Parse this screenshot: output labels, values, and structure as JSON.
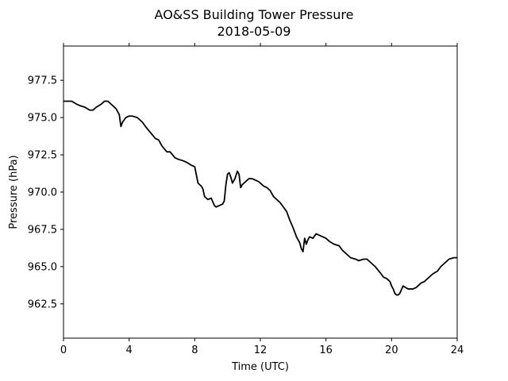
{
  "chart_data": {
    "type": "line",
    "title": "AO&SS Building Tower Pressure",
    "subtitle": "2018-05-09",
    "xlabel": "Time (UTC)",
    "ylabel": "Pressure (hPa)",
    "xlim": [
      0,
      24
    ],
    "ylim": [
      960.2,
      979.8
    ],
    "xticks": [
      0,
      4,
      8,
      12,
      16,
      20,
      24
    ],
    "xtick_labels": [
      "0",
      "4",
      "8",
      "12",
      "16",
      "20",
      "24"
    ],
    "yticks": [
      962.5,
      965.0,
      967.5,
      970.0,
      972.5,
      975.0,
      977.5
    ],
    "ytick_labels": [
      "962.5",
      "965.0",
      "967.5",
      "970.0",
      "972.5",
      "975.0",
      "977.5"
    ],
    "grid": false,
    "line_color": "#000000",
    "series": [
      {
        "x": [
          0.0,
          0.3,
          0.5,
          0.8,
          1.0,
          1.3,
          1.6,
          1.8,
          2.0,
          2.3,
          2.5,
          2.7,
          3.0,
          3.2,
          3.4,
          3.5,
          3.6,
          3.8,
          4.0,
          4.2,
          4.5,
          4.8,
          5.0,
          5.3,
          5.6,
          5.8,
          6.0,
          6.3,
          6.5,
          6.8,
          7.0,
          7.3,
          7.5,
          7.8,
          8.0,
          8.2,
          8.4,
          8.5,
          8.6,
          8.8,
          9.0,
          9.2,
          9.3,
          9.5,
          9.7,
          9.8,
          9.9,
          10.0,
          10.1,
          10.2,
          10.3,
          10.45,
          10.6,
          10.7,
          10.8,
          10.9,
          11.1,
          11.3,
          11.5,
          11.7,
          11.9,
          12.0,
          12.2,
          12.4,
          12.6,
          12.8,
          13.0,
          13.2,
          13.4,
          13.6,
          13.8,
          14.0,
          14.2,
          14.4,
          14.5,
          14.6,
          14.7,
          14.8,
          14.9,
          15.0,
          15.2,
          15.4,
          15.6,
          15.8,
          16.0,
          16.2,
          16.5,
          16.8,
          17.0,
          17.3,
          17.5,
          17.8,
          18.0,
          18.3,
          18.5,
          18.8,
          19.0,
          19.3,
          19.5,
          19.7,
          19.9,
          20.0,
          20.1,
          20.2,
          20.3,
          20.4,
          20.5,
          20.7,
          21.0,
          21.3,
          21.5,
          21.8,
          22.0,
          22.3,
          22.5,
          22.8,
          23.0,
          23.3,
          23.5,
          23.8,
          24.0
        ],
        "y": [
          976.1,
          976.1,
          976.1,
          975.9,
          975.8,
          975.7,
          975.5,
          975.5,
          975.7,
          975.9,
          976.1,
          976.1,
          975.8,
          975.6,
          975.2,
          974.4,
          974.7,
          975.0,
          975.1,
          975.1,
          975.0,
          974.7,
          974.4,
          974.0,
          973.6,
          973.5,
          973.1,
          972.7,
          972.7,
          972.3,
          972.2,
          972.1,
          972.0,
          971.8,
          971.7,
          970.6,
          970.4,
          970.2,
          969.7,
          969.5,
          969.6,
          969.1,
          969.0,
          969.1,
          969.2,
          969.4,
          970.5,
          971.2,
          971.3,
          971.0,
          970.6,
          970.9,
          971.4,
          971.2,
          970.3,
          970.5,
          970.7,
          970.9,
          970.9,
          970.8,
          970.7,
          970.6,
          970.4,
          970.3,
          970.1,
          969.7,
          969.5,
          969.3,
          969.0,
          968.7,
          968.1,
          967.6,
          967.0,
          966.6,
          966.2,
          966.0,
          966.9,
          966.5,
          966.8,
          967.0,
          966.9,
          967.2,
          967.1,
          967.0,
          966.9,
          966.7,
          966.5,
          966.4,
          966.1,
          965.8,
          965.6,
          965.5,
          965.4,
          965.5,
          965.5,
          965.2,
          965.0,
          964.6,
          964.3,
          964.2,
          964.0,
          963.7,
          963.5,
          963.2,
          963.1,
          963.1,
          963.2,
          963.7,
          963.5,
          963.5,
          963.6,
          963.9,
          964.0,
          964.3,
          964.5,
          964.7,
          965.0,
          965.3,
          965.5,
          965.6,
          965.6
        ]
      }
    ]
  }
}
